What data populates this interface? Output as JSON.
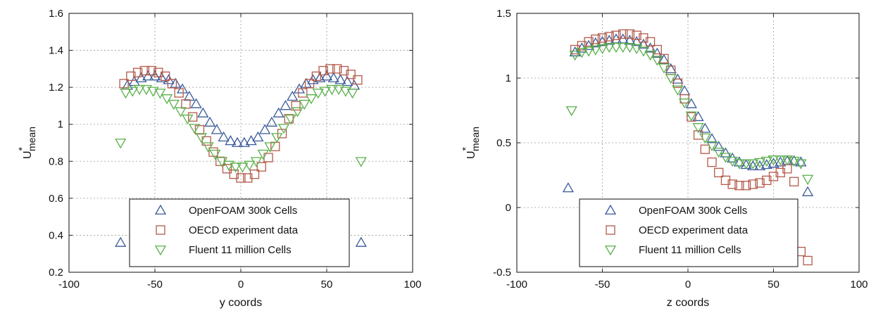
{
  "chart_data": [
    {
      "type": "scatter",
      "xlabel": "y coords",
      "ylabel": "U",
      "ylabel_sub": "mean",
      "ylabel_sup": "*",
      "xlim": [
        -100,
        100
      ],
      "ylim": [
        0.2,
        1.6
      ],
      "xticks": [
        -100,
        -50,
        0,
        50,
        100
      ],
      "yticks": [
        0.2,
        0.4,
        0.6,
        0.8,
        1,
        1.2,
        1.4,
        1.6
      ],
      "ytick_labels": [
        "0.2",
        "0.4",
        "0.6",
        "0.8",
        "1",
        "1.2",
        "1.4",
        "1.6"
      ],
      "grid": true,
      "legend_position": "bottom-center",
      "series": [
        {
          "name": "OpenFOAM 300k Cells",
          "marker": "triangle-up",
          "color": "#3a5a9a",
          "x": [
            -70,
            -66,
            -62,
            -58,
            -54,
            -50,
            -46,
            -42,
            -38,
            -34,
            -30,
            -26,
            -22,
            -18,
            -14,
            -10,
            -6,
            -2,
            2,
            6,
            10,
            14,
            18,
            22,
            26,
            30,
            34,
            38,
            42,
            46,
            50,
            54,
            58,
            62,
            66,
            70
          ],
          "y": [
            0.36,
            1.21,
            1.23,
            1.25,
            1.26,
            1.26,
            1.25,
            1.24,
            1.22,
            1.19,
            1.15,
            1.11,
            1.06,
            1.01,
            0.97,
            0.93,
            0.91,
            0.9,
            0.9,
            0.91,
            0.93,
            0.97,
            1.01,
            1.06,
            1.1,
            1.15,
            1.19,
            1.22,
            1.24,
            1.25,
            1.26,
            1.25,
            1.24,
            1.23,
            1.21,
            0.36
          ]
        },
        {
          "name": "OECD experiment data",
          "marker": "square",
          "color": "#b35a4a",
          "x": [
            -68,
            -64,
            -60,
            -56,
            -52,
            -48,
            -44,
            -40,
            -36,
            -32,
            -28,
            -24,
            -20,
            -16,
            -12,
            -8,
            -4,
            0,
            4,
            8,
            12,
            16,
            20,
            24,
            28,
            32,
            36,
            40,
            44,
            48,
            52,
            56,
            60,
            64,
            68
          ],
          "y": [
            1.22,
            1.26,
            1.28,
            1.29,
            1.29,
            1.28,
            1.26,
            1.22,
            1.17,
            1.11,
            1.04,
            0.97,
            0.91,
            0.85,
            0.8,
            0.76,
            0.73,
            0.71,
            0.71,
            0.73,
            0.77,
            0.82,
            0.88,
            0.95,
            1.03,
            1.1,
            1.17,
            1.22,
            1.26,
            1.29,
            1.3,
            1.3,
            1.29,
            1.27,
            1.24
          ]
        },
        {
          "name": "Fluent 11 million Cells",
          "marker": "triangle-down",
          "color": "#5ab04a",
          "x": [
            -70,
            -67,
            -63,
            -59,
            -55,
            -51,
            -47,
            -43,
            -39,
            -35,
            -31,
            -27,
            -23,
            -19,
            -15,
            -11,
            -7,
            -3,
            1,
            5,
            9,
            13,
            17,
            21,
            25,
            29,
            33,
            37,
            41,
            45,
            49,
            53,
            57,
            61,
            65,
            70
          ],
          "y": [
            0.9,
            1.17,
            1.18,
            1.19,
            1.19,
            1.18,
            1.17,
            1.14,
            1.11,
            1.07,
            1.03,
            0.98,
            0.93,
            0.88,
            0.84,
            0.8,
            0.78,
            0.77,
            0.77,
            0.78,
            0.8,
            0.84,
            0.88,
            0.93,
            0.98,
            1.03,
            1.07,
            1.11,
            1.14,
            1.17,
            1.18,
            1.19,
            1.19,
            1.18,
            1.17,
            0.8
          ]
        }
      ]
    },
    {
      "type": "scatter",
      "xlabel": "z coords",
      "ylabel": "U",
      "ylabel_sub": "mean",
      "ylabel_sup": "*",
      "xlim": [
        -100,
        100
      ],
      "ylim": [
        -0.5,
        1.5
      ],
      "xticks": [
        -100,
        -50,
        0,
        50,
        100
      ],
      "yticks": [
        -0.5,
        0,
        0.5,
        1,
        1.5
      ],
      "ytick_labels": [
        "-0.5",
        "0",
        "0.5",
        "1",
        "1.5"
      ],
      "grid": true,
      "legend_position": "bottom-center",
      "series": [
        {
          "name": "OpenFOAM 300k Cells",
          "marker": "triangle-up",
          "color": "#3a5a9a",
          "x": [
            -70,
            -66,
            -62,
            -58,
            -54,
            -50,
            -46,
            -42,
            -38,
            -34,
            -30,
            -26,
            -22,
            -18,
            -14,
            -10,
            -6,
            -2,
            2,
            6,
            10,
            14,
            18,
            22,
            26,
            30,
            34,
            38,
            42,
            46,
            50,
            54,
            58,
            62,
            66,
            70
          ],
          "y": [
            0.15,
            1.2,
            1.23,
            1.25,
            1.27,
            1.28,
            1.29,
            1.3,
            1.3,
            1.29,
            1.28,
            1.26,
            1.23,
            1.19,
            1.14,
            1.07,
            0.99,
            0.9,
            0.8,
            0.7,
            0.61,
            0.53,
            0.47,
            0.42,
            0.38,
            0.35,
            0.33,
            0.32,
            0.32,
            0.33,
            0.34,
            0.35,
            0.36,
            0.36,
            0.35,
            0.12
          ]
        },
        {
          "name": "OECD experiment data",
          "marker": "square",
          "color": "#b35a4a",
          "x": [
            -66,
            -62,
            -58,
            -54,
            -50,
            -46,
            -42,
            -38,
            -34,
            -30,
            -26,
            -22,
            -18,
            -14,
            -10,
            -6,
            -2,
            2,
            6,
            10,
            14,
            18,
            22,
            26,
            30,
            34,
            38,
            42,
            46,
            50,
            54,
            58,
            62,
            66,
            70
          ],
          "y": [
            1.22,
            1.25,
            1.28,
            1.3,
            1.31,
            1.32,
            1.33,
            1.34,
            1.34,
            1.33,
            1.31,
            1.28,
            1.22,
            1.15,
            1.06,
            0.96,
            0.84,
            0.7,
            0.56,
            0.45,
            0.35,
            0.27,
            0.21,
            0.18,
            0.17,
            0.17,
            0.18,
            0.19,
            0.21,
            0.24,
            0.27,
            0.3,
            0.2,
            -0.34,
            -0.41
          ]
        },
        {
          "name": "Fluent 11 million Cells",
          "marker": "triangle-down",
          "color": "#5ab04a",
          "x": [
            -68,
            -66,
            -62,
            -58,
            -54,
            -50,
            -46,
            -42,
            -38,
            -34,
            -30,
            -26,
            -22,
            -18,
            -14,
            -10,
            -6,
            -2,
            2,
            6,
            10,
            14,
            18,
            22,
            26,
            30,
            34,
            38,
            42,
            46,
            50,
            54,
            58,
            62,
            66,
            70
          ],
          "y": [
            0.75,
            1.18,
            1.2,
            1.21,
            1.22,
            1.23,
            1.24,
            1.24,
            1.24,
            1.24,
            1.23,
            1.21,
            1.18,
            1.14,
            1.08,
            1.0,
            0.91,
            0.81,
            0.71,
            0.62,
            0.54,
            0.48,
            0.43,
            0.39,
            0.36,
            0.34,
            0.34,
            0.34,
            0.35,
            0.36,
            0.37,
            0.37,
            0.37,
            0.36,
            0.34,
            0.22
          ]
        }
      ]
    }
  ]
}
